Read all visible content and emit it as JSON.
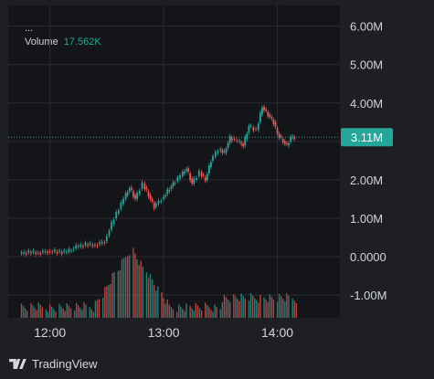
{
  "legend": {
    "ellipsis": "...",
    "volume_label": "Volume",
    "volume_value": "17.562K"
  },
  "brand": {
    "name": "TradingView"
  },
  "colors": {
    "up": "#26a69a",
    "down": "#ef5350",
    "price_line": "#26a69a",
    "grid": "#2a2c31",
    "text": "#d1d4dc"
  },
  "chart_data": {
    "type": "line",
    "title": "",
    "yaxis": {
      "min": -1.4,
      "max": 6.3,
      "ticks": [
        6.0,
        5.0,
        4.0,
        3.0,
        2.0,
        1.0,
        0.0,
        -1.0
      ],
      "tick_labels": [
        "6.00M",
        "5.00M",
        "4.00M",
        "",
        "2.00M",
        "1.00M",
        "0.0000",
        "-1.00M"
      ]
    },
    "xaxis": {
      "min": "11:38",
      "max": "14:33",
      "ticks": [
        "12:00",
        "13:00",
        "14:00"
      ]
    },
    "last_value": {
      "value": 3.11,
      "label": "3.11M"
    },
    "series": [
      {
        "x": [
          "11:45",
          "11:50",
          "11:55",
          "12:00",
          "12:05",
          "12:10",
          "12:15",
          "12:20",
          "12:25",
          "12:30",
          "12:35",
          "12:40",
          "12:43",
          "12:46",
          "12:50",
          "12:53",
          "12:56",
          "13:00",
          "13:03",
          "13:06",
          "13:10",
          "13:13",
          "13:16",
          "13:20",
          "13:23",
          "13:26",
          "13:30",
          "13:33",
          "13:36",
          "13:40",
          "13:43",
          "13:46",
          "13:50",
          "13:53",
          "13:56",
          "13:59",
          "14:01",
          "14:04",
          "14:06",
          "14:08",
          "14:10"
        ],
        "values": [
          0.08,
          0.12,
          0.1,
          0.14,
          0.13,
          0.12,
          0.25,
          0.32,
          0.3,
          0.4,
          1.0,
          1.5,
          1.8,
          1.5,
          1.9,
          1.6,
          1.3,
          1.5,
          1.7,
          1.9,
          2.1,
          2.3,
          1.9,
          2.2,
          2.0,
          2.5,
          2.8,
          2.7,
          3.1,
          3.0,
          2.9,
          3.4,
          3.3,
          3.9,
          3.7,
          3.5,
          3.2,
          3.0,
          2.9,
          3.1,
          3.11
        ]
      }
    ],
    "volume": {
      "label": "Volume",
      "peak": "12:43"
    }
  }
}
